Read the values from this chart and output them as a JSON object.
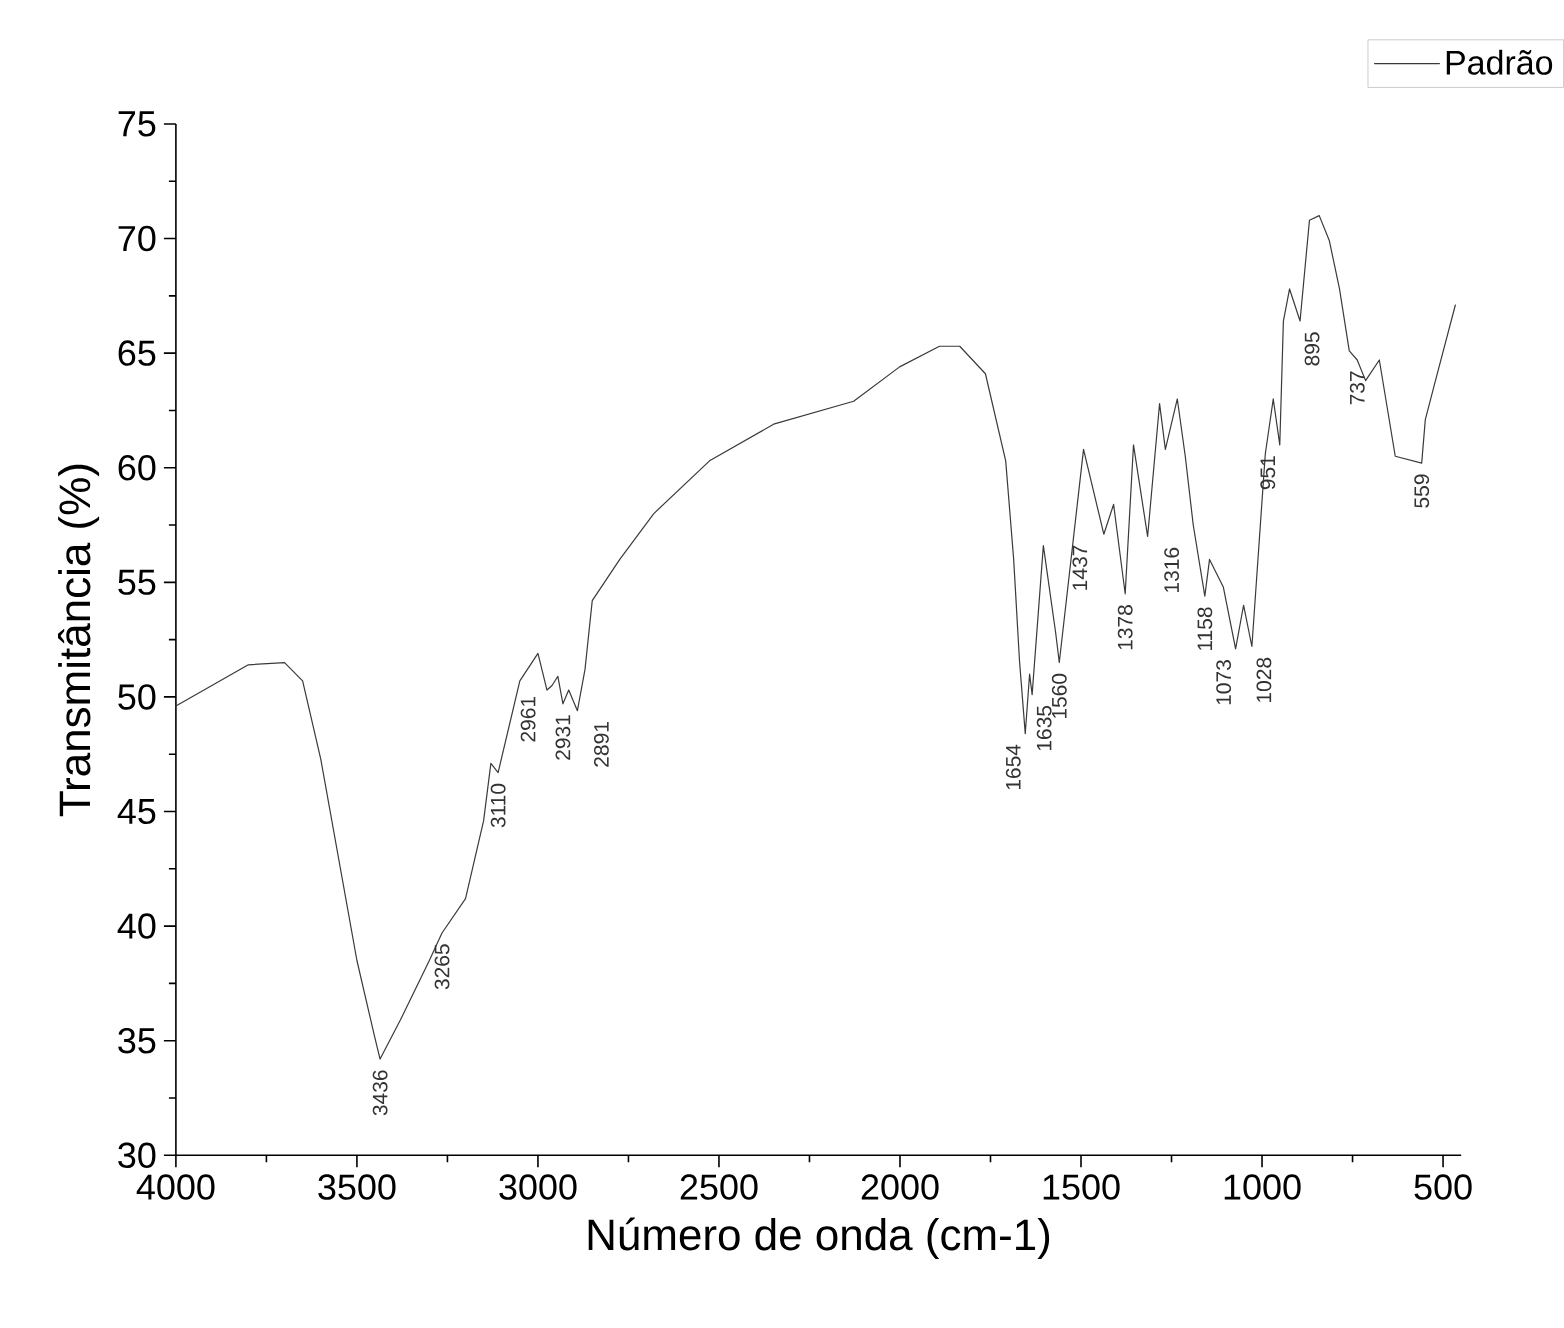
{
  "chart_data": {
    "type": "line",
    "xlabel": "Número de onda (cm-1)",
    "ylabel": "Transmitância (%)",
    "xlim": [
      4000,
      450
    ],
    "ylim": [
      30,
      75
    ],
    "xticks": [
      4000,
      3500,
      3000,
      2500,
      2000,
      1500,
      1000,
      500
    ],
    "yticks": [
      30,
      35,
      40,
      45,
      50,
      55,
      60,
      65,
      70,
      75
    ],
    "legend": "top right",
    "grid": false,
    "marker": "none",
    "line_style": "solid",
    "series": [
      {
        "name": "Padrão",
        "color": "#3a3a3a",
        "x": [
          4000,
          3800,
          3700,
          3650,
          3600,
          3550,
          3500,
          3450,
          3436,
          3380,
          3300,
          3265,
          3200,
          3150,
          3130,
          3110,
          3050,
          3000,
          2975,
          2961,
          2945,
          2931,
          2915,
          2891,
          2870,
          2850,
          2774,
          2680,
          2526,
          2349,
          2128,
          2001,
          1891,
          1835,
          1764,
          1708,
          1686,
          1670,
          1654,
          1642,
          1635,
          1604,
          1570,
          1560,
          1493,
          1437,
          1410,
          1378,
          1355,
          1316,
          1283,
          1267,
          1234,
          1212,
          1190,
          1158,
          1145,
          1107,
          1073,
          1051,
          1028,
          991,
          969,
          951,
          941,
          924,
          895,
          869,
          842,
          814,
          786,
          759,
          737,
          714,
          676,
          632,
          559,
          549,
          521,
          466
        ],
        "values": [
          49.6,
          51.4,
          51.5,
          50.7,
          47.3,
          42.9,
          38.5,
          35.1,
          34.2,
          35.9,
          38.5,
          39.7,
          41.2,
          44.6,
          47.1,
          46.7,
          50.7,
          51.9,
          50.3,
          50.5,
          50.9,
          49.7,
          50.3,
          49.4,
          51.2,
          54.2,
          56.0,
          58.0,
          60.3,
          61.9,
          62.9,
          64.4,
          65.3,
          65.3,
          64.1,
          60.3,
          56.0,
          51.6,
          48.4,
          51.0,
          50.1,
          56.6,
          52.8,
          51.5,
          60.8,
          57.1,
          58.4,
          54.5,
          61.0,
          57.0,
          62.8,
          60.8,
          63.0,
          60.5,
          57.5,
          54.4,
          56.0,
          54.8,
          52.1,
          54.0,
          52.2,
          60.6,
          63.0,
          61.0,
          66.4,
          67.8,
          66.4,
          70.8,
          71.0,
          69.9,
          67.8,
          65.1,
          64.7,
          63.8,
          64.7,
          60.5,
          60.2,
          62.1,
          63.8,
          67.1
        ]
      }
    ],
    "annotations": [
      {
        "text": "3436",
        "x": 3436,
        "y": 34.2
      },
      {
        "text": "3265",
        "x": 3265,
        "y": 39.7
      },
      {
        "text": "3110",
        "x": 3110,
        "y": 46.7
      },
      {
        "text": "2961",
        "x": 2961,
        "y": 50.5
      },
      {
        "text": "2931",
        "x": 2931,
        "y": 49.7
      },
      {
        "text": "2891",
        "x": 2891,
        "y": 49.4
      },
      {
        "text": "1654",
        "x": 1654,
        "y": 48.4
      },
      {
        "text": "1635",
        "x": 1635,
        "y": 50.1
      },
      {
        "text": "1560",
        "x": 1560,
        "y": 51.5
      },
      {
        "text": "1437",
        "x": 1437,
        "y": 57.1
      },
      {
        "text": "1378",
        "x": 1378,
        "y": 54.5
      },
      {
        "text": "1316",
        "x": 1316,
        "y": 57.0
      },
      {
        "text": "1158",
        "x": 1158,
        "y": 54.4
      },
      {
        "text": "1073",
        "x": 1073,
        "y": 52.1
      },
      {
        "text": "1028",
        "x": 1028,
        "y": 52.2
      },
      {
        "text": "951",
        "x": 951,
        "y": 61.0
      },
      {
        "text": "895",
        "x": 895,
        "y": 66.4
      },
      {
        "text": "737",
        "x": 737,
        "y": 64.7
      },
      {
        "text": "559",
        "x": 559,
        "y": 60.2
      }
    ]
  }
}
